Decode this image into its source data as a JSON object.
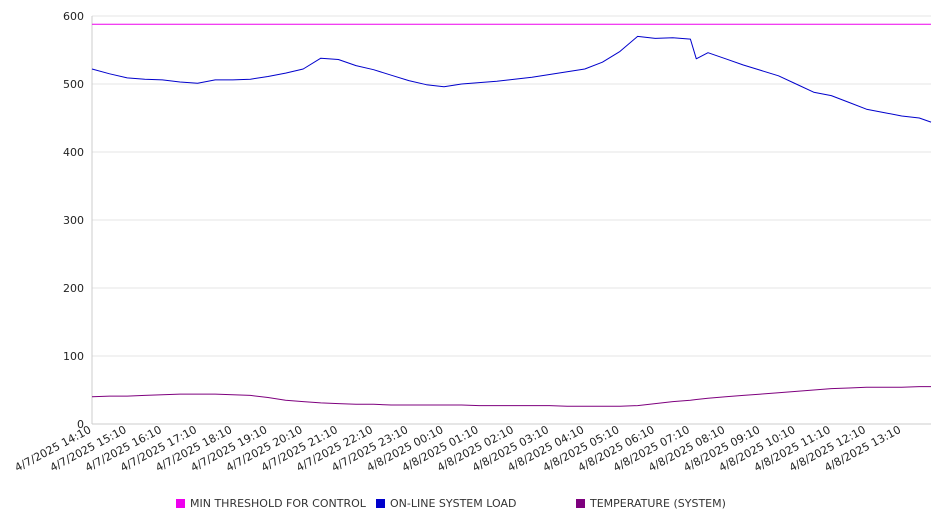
{
  "chart_data": {
    "type": "line",
    "title": "",
    "xlabel": "",
    "ylabel": "",
    "ylim": [
      0,
      600
    ],
    "yticks": [
      0,
      100,
      200,
      300,
      400,
      500,
      600
    ],
    "grid": true,
    "legend_position": "bottom",
    "x_tick_labels": [
      "4/7/2025 14:10",
      "4/7/2025 15:10",
      "4/7/2025 16:10",
      "4/7/2025 17:10",
      "4/7/2025 18:10",
      "4/7/2025 19:10",
      "4/7/2025 20:10",
      "4/7/2025 21:10",
      "4/7/2025 22:10",
      "4/7/2025 23:10",
      "4/8/2025 00:10",
      "4/8/2025 01:10",
      "4/8/2025 02:10",
      "4/8/2025 03:10",
      "4/8/2025 04:10",
      "4/8/2025 05:10",
      "4/8/2025 06:10",
      "4/8/2025 07:10",
      "4/8/2025 08:10",
      "4/8/2025 09:10",
      "4/8/2025 10:10",
      "4/8/2025 11:10",
      "4/8/2025 12:10",
      "4/8/2025 13:10"
    ],
    "x": [
      "4/7/2025 14:10",
      "4/7/2025 14:40",
      "4/7/2025 15:10",
      "4/7/2025 15:40",
      "4/7/2025 16:10",
      "4/7/2025 16:40",
      "4/7/2025 17:10",
      "4/7/2025 17:40",
      "4/7/2025 18:10",
      "4/7/2025 18:40",
      "4/7/2025 19:10",
      "4/7/2025 19:40",
      "4/7/2025 20:10",
      "4/7/2025 20:40",
      "4/7/2025 21:10",
      "4/7/2025 21:40",
      "4/7/2025 22:10",
      "4/7/2025 22:40",
      "4/7/2025 23:10",
      "4/7/2025 23:40",
      "4/8/2025 00:10",
      "4/8/2025 00:40",
      "4/8/2025 01:10",
      "4/8/2025 01:40",
      "4/8/2025 02:10",
      "4/8/2025 02:40",
      "4/8/2025 03:10",
      "4/8/2025 03:40",
      "4/8/2025 04:10",
      "4/8/2025 04:40",
      "4/8/2025 05:10",
      "4/8/2025 05:40",
      "4/8/2025 06:10",
      "4/8/2025 06:40",
      "4/8/2025 07:10",
      "4/8/2025 07:20",
      "4/8/2025 07:40",
      "4/8/2025 08:10",
      "4/8/2025 08:40",
      "4/8/2025 09:10",
      "4/8/2025 09:40",
      "4/8/2025 10:10",
      "4/8/2025 10:40",
      "4/8/2025 11:10",
      "4/8/2025 11:40",
      "4/8/2025 12:10",
      "4/8/2025 12:40",
      "4/8/2025 13:10",
      "4/8/2025 13:40",
      "4/8/2025 14:00"
    ],
    "series": [
      {
        "name": "MIN THRESHOLD FOR CONTROL",
        "color": "#ee00ee",
        "values": [
          588,
          588,
          588,
          588,
          588,
          588,
          588,
          588,
          588,
          588,
          588,
          588,
          588,
          588,
          588,
          588,
          588,
          588,
          588,
          588,
          588,
          588,
          588,
          588,
          588,
          588,
          588,
          588,
          588,
          588,
          588,
          588,
          588,
          588,
          588,
          588,
          588,
          588,
          588,
          588,
          588,
          588,
          588,
          588,
          588,
          588,
          588,
          588,
          588,
          588
        ]
      },
      {
        "name": "ON-LINE SYSTEM LOAD",
        "color": "#0000cc",
        "values": [
          522,
          515,
          509,
          507,
          506,
          503,
          501,
          506,
          506,
          507,
          511,
          516,
          522,
          538,
          536,
          527,
          521,
          513,
          505,
          499,
          496,
          500,
          502,
          504,
          507,
          510,
          514,
          518,
          522,
          532,
          548,
          570,
          567,
          568,
          566,
          537,
          546,
          537,
          528,
          520,
          512,
          500,
          488,
          483,
          473,
          463,
          458,
          453,
          450,
          444
        ]
      },
      {
        "name": "TEMPERATURE (SYSTEM)",
        "color": "#7e007e",
        "values": [
          40,
          41,
          41,
          42,
          43,
          44,
          44,
          44,
          43,
          42,
          39,
          35,
          33,
          31,
          30,
          29,
          29,
          28,
          28,
          28,
          28,
          28,
          27,
          27,
          27,
          27,
          27,
          26,
          26,
          26,
          26,
          27,
          30,
          33,
          35,
          36,
          38,
          40,
          42,
          44,
          46,
          48,
          50,
          52,
          53,
          54,
          54,
          54,
          55,
          55
        ]
      }
    ]
  }
}
